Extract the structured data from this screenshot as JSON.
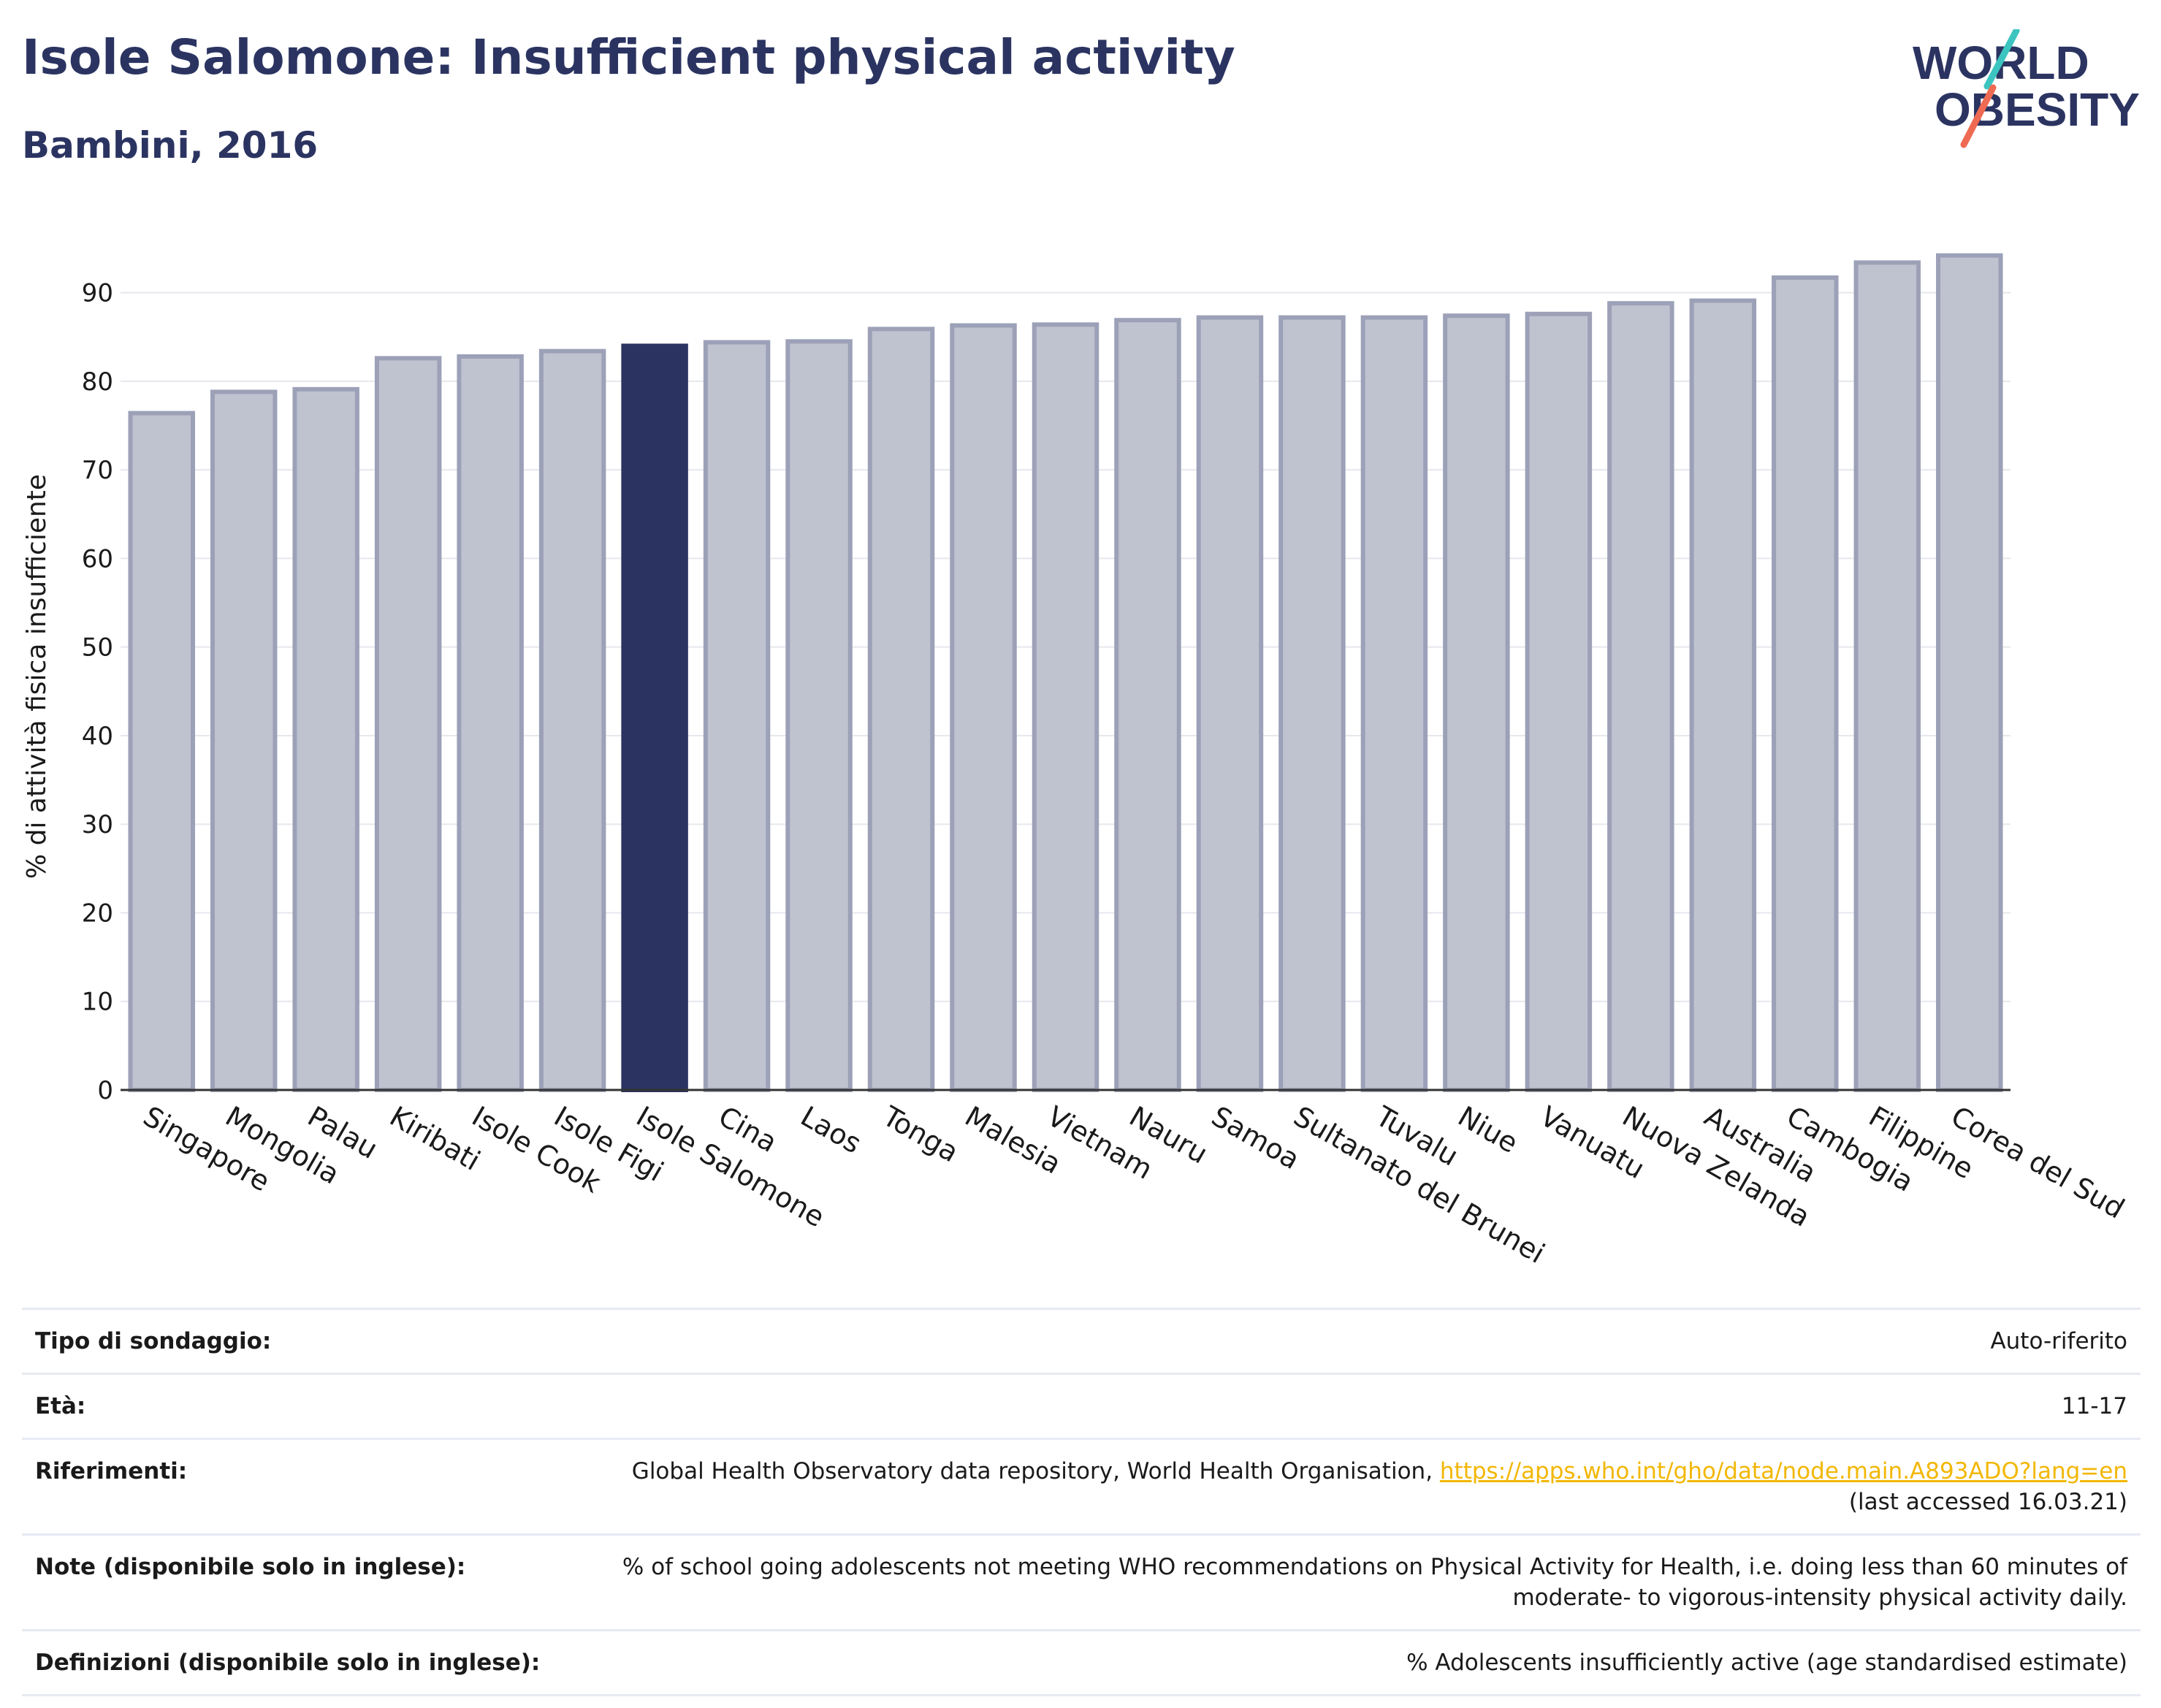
{
  "header": {
    "title": "Isole Salomone: Insufficient physical activity",
    "subtitle": "Bambini, 2016"
  },
  "logo": {
    "line1": "WORLD",
    "line2": "OBESITY",
    "icon": "world-obesity-logo"
  },
  "chart_data": {
    "type": "bar",
    "ylabel": "% di attività fisica insufficiente",
    "ylim": [
      0,
      95
    ],
    "yticks": [
      0,
      10,
      20,
      30,
      40,
      50,
      60,
      70,
      80,
      90
    ],
    "grid": true,
    "highlight": "Isole Salomone",
    "colors": {
      "highlight": "#2b3461",
      "bar": "#bfc3d0",
      "bar_border": "#9ca1b8"
    },
    "categories": [
      "Singapore",
      "Mongolia",
      "Palau",
      "Kiribati",
      "Isole Cook",
      "Isole Figi",
      "Isole Salomone",
      "Cina",
      "Laos",
      "Tonga",
      "Malesia",
      "Vietnam",
      "Nauru",
      "Samoa",
      "Sultanato del Brunei",
      "Tuvalu",
      "Niue",
      "Vanuatu",
      "Nuova Zelanda",
      "Australia",
      "Cambogia",
      "Filippine",
      "Corea del Sud"
    ],
    "values": [
      76.4,
      78.8,
      79.1,
      82.6,
      82.8,
      83.4,
      84.0,
      84.4,
      84.5,
      85.9,
      86.3,
      86.4,
      86.9,
      87.2,
      87.2,
      87.2,
      87.4,
      87.6,
      88.8,
      89.1,
      91.7,
      93.4,
      94.2
    ]
  },
  "meta": {
    "rows": [
      {
        "label": "Tipo di sondaggio:",
        "value": "Auto-riferito"
      },
      {
        "label": "Età:",
        "value": "11-17"
      },
      {
        "label": "Riferimenti:",
        "value": "Global Health Observatory data repository, World Health Organisation, ",
        "link": "https://apps.who.int/gho/data/node.main.A893ADO?lang=en",
        "value2": "(last accessed 16.03.21)"
      },
      {
        "label": "Note (disponibile solo in inglese):",
        "value": "% of school going adolescents not meeting WHO recommendations on Physical Activity for Health, i.e. doing less than 60 minutes of moderate- to vigorous-intensity physical activity daily."
      },
      {
        "label": "Definizioni (disponibile solo in inglese):",
        "value": "% Adolescents insufficiently active (age standardised estimate)"
      }
    ]
  }
}
